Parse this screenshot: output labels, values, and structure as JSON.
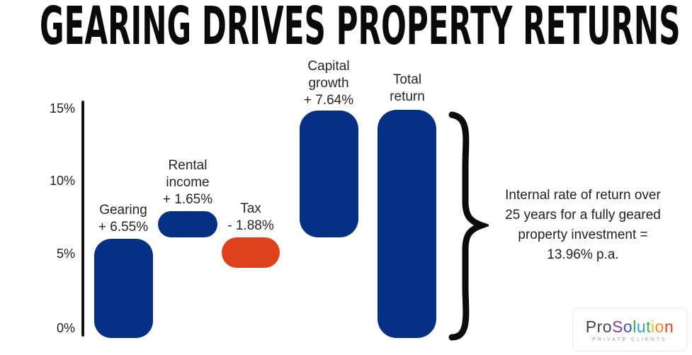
{
  "title": "GEARING DRIVES PROPERTY RETURNS",
  "axis": {
    "ticks": [
      "15%",
      "10%",
      "5%",
      "0%"
    ]
  },
  "labels": {
    "gearing": [
      "Gearing",
      "+ 6.55%"
    ],
    "rental": [
      "Rental",
      "income",
      "+ 1.65%"
    ],
    "tax": [
      "Tax",
      "- 1.88%"
    ],
    "capital": [
      "Capital",
      "growth",
      "+ 7.64%"
    ],
    "total": [
      "Total",
      "return"
    ]
  },
  "annotation": {
    "lines": [
      "Internal rate of return over",
      "25 years for a fully geared",
      "property investment =",
      "13.96% p.a."
    ]
  },
  "logo": {
    "prefix": "Pro",
    "letters": [
      {
        "ch": "S",
        "color": "#7e3f9d"
      },
      {
        "ch": "o",
        "color": "#4152c1"
      },
      {
        "ch": "l",
        "color": "#3aa54a"
      },
      {
        "ch": "u",
        "color": "#2e9fd4"
      },
      {
        "ch": "t",
        "color": "#4cb04a"
      },
      {
        "ch": "i",
        "color": "#d9c422"
      },
      {
        "ch": "o",
        "color": "#f08c1e"
      },
      {
        "ch": "n",
        "color": "#e84427"
      }
    ],
    "tagline": "PRIVATE CLIENTS"
  },
  "colors": {
    "bar_blue": "#043084",
    "bar_orange": "#dd421d",
    "title_black": "#0a0a0a"
  },
  "chart_data": {
    "type": "bar",
    "subtype": "waterfall",
    "title": "GEARING DRIVES PROPERTY RETURNS",
    "categories": [
      "Gearing",
      "Rental income",
      "Tax",
      "Capital growth",
      "Total return"
    ],
    "values": [
      6.55,
      1.65,
      -1.88,
      7.64,
      13.96
    ],
    "bar_value_labels": [
      "+ 6.55%",
      "+ 1.65%",
      "- 1.88%",
      "+ 7.64%",
      ""
    ],
    "bar_colors": [
      "#043084",
      "#043084",
      "#dd421d",
      "#043084",
      "#043084"
    ],
    "xlabel": "",
    "ylabel": "",
    "ylim": [
      0,
      15
    ],
    "yticks": [
      "0%",
      "5%",
      "10%",
      "15%"
    ],
    "grid": false,
    "legend": false,
    "annotation": "Internal rate of return over 25 years for a fully geared property investment = 13.96% p.a."
  }
}
